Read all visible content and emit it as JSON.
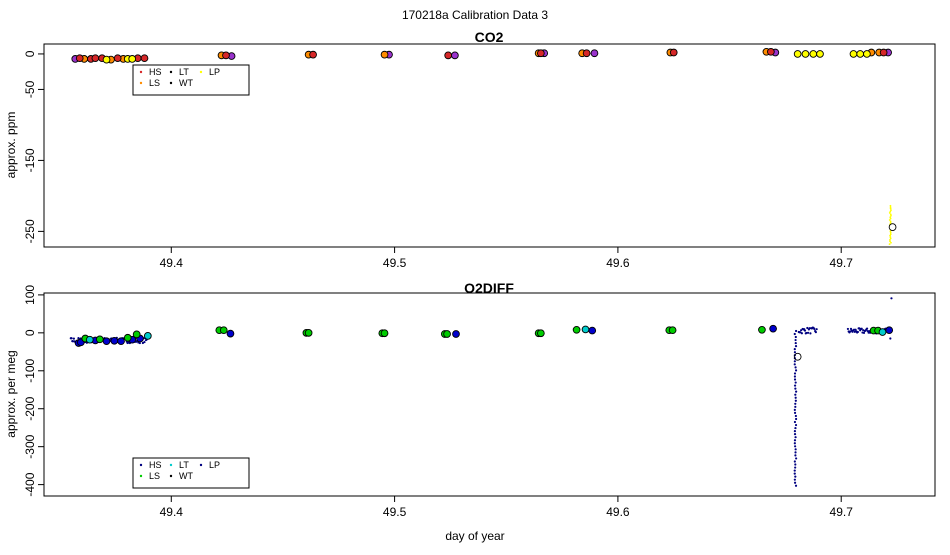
{
  "page_title": "170218a   Calibration Data 3",
  "chart_data": [
    {
      "type": "scatter",
      "title": "CO2",
      "xlabel": "",
      "ylabel": "approx. ppm",
      "xlim": [
        49.343,
        49.742
      ],
      "ylim": [
        -272,
        14
      ],
      "x_ticks": [
        "49.4",
        "49.5",
        "49.6",
        "49.7"
      ],
      "y_ticks": [
        "0",
        "-50",
        "-150",
        "-250"
      ],
      "legend": {
        "placement": "top-left",
        "entries": [
          {
            "label": "HS",
            "color": "#d62728"
          },
          {
            "label": "LS",
            "color": "#ff8c00"
          },
          {
            "label": "LT",
            "color": "#000000"
          },
          {
            "label": "WT",
            "color": "#000000"
          },
          {
            "label": "LP",
            "color": "#ffff00"
          }
        ]
      },
      "series": [
        {
          "color": "#9933cc",
          "points": [
            [
              49.357,
              -7
            ],
            [
              49.427,
              -3
            ],
            [
              49.4975,
              -1
            ],
            [
              49.527,
              -2
            ],
            [
              49.567,
              1
            ],
            [
              49.5895,
              1
            ],
            [
              49.6705,
              2
            ],
            [
              49.721,
              2
            ]
          ]
        },
        {
          "color": "#ff8c00",
          "points": [
            [
              49.361,
              -7
            ],
            [
              49.373,
              -8
            ],
            [
              49.3785,
              -7
            ],
            [
              49.4225,
              -2
            ],
            [
              49.4615,
              -1
            ],
            [
              49.4955,
              -1
            ],
            [
              49.5645,
              1
            ],
            [
              49.584,
              1
            ],
            [
              49.6235,
              2
            ],
            [
              49.6665,
              3
            ],
            [
              49.7135,
              2
            ],
            [
              49.717,
              2
            ]
          ]
        },
        {
          "color": "#d62728",
          "points": [
            [
              49.359,
              -6
            ],
            [
              49.364,
              -7
            ],
            [
              49.366,
              -6
            ],
            [
              49.369,
              -6
            ],
            [
              49.376,
              -6
            ],
            [
              49.385,
              -6
            ],
            [
              49.388,
              -6
            ],
            [
              49.4245,
              -2
            ],
            [
              49.4635,
              -1
            ],
            [
              49.524,
              -2
            ],
            [
              49.5655,
              1
            ],
            [
              49.586,
              1
            ],
            [
              49.625,
              2
            ],
            [
              49.6685,
              3
            ],
            [
              49.719,
              2
            ]
          ]
        },
        {
          "color": "#ffff00",
          "points": [
            [
              49.371,
              -8
            ],
            [
              49.3805,
              -7
            ],
            [
              49.3825,
              -7
            ],
            [
              49.6805,
              0
            ],
            [
              49.684,
              0
            ],
            [
              49.6875,
              0
            ],
            [
              49.6905,
              0
            ],
            [
              49.7055,
              0
            ],
            [
              49.7085,
              0
            ],
            [
              49.7115,
              0
            ],
            [
              49.723,
              -244
            ]
          ]
        }
      ],
      "trace": {
        "color": "#ffff00",
        "x": 49.722,
        "y_range": [
          -268,
          -214
        ]
      }
    },
    {
      "type": "scatter",
      "title": "O2DIFF",
      "xlabel": "day of year",
      "ylabel": "approx. per meg",
      "xlim": [
        49.343,
        49.742
      ],
      "ylim": [
        -430,
        105
      ],
      "x_ticks": [
        "49.4",
        "49.5",
        "49.6",
        "49.7"
      ],
      "y_ticks": [
        "100",
        "0",
        "-100",
        "-200",
        "-300",
        "-400"
      ],
      "legend": {
        "placement": "bottom-left",
        "entries": [
          {
            "label": "HS",
            "color": "#000080"
          },
          {
            "label": "LS",
            "color": "#00cc00"
          },
          {
            "label": "LT",
            "color": "#00cccc"
          },
          {
            "label": "WT",
            "color": "#000000"
          },
          {
            "label": "LP",
            "color": "#000080"
          }
        ]
      },
      "series": [
        {
          "color": "#0000cc",
          "points": [
            [
              49.3585,
              -27
            ],
            [
              49.3595,
              -25
            ],
            [
              49.366,
              -20
            ],
            [
              49.371,
              -22
            ],
            [
              49.3745,
              -21
            ],
            [
              49.3775,
              -22
            ],
            [
              49.3825,
              -18
            ],
            [
              49.386,
              -15
            ],
            [
              49.4265,
              -2
            ],
            [
              49.5275,
              -3
            ],
            [
              49.5885,
              6
            ],
            [
              49.6695,
              11
            ],
            [
              49.7215,
              7
            ]
          ]
        },
        {
          "color": "#00cc00",
          "points": [
            [
              49.3615,
              -15
            ],
            [
              49.368,
              -17
            ],
            [
              49.3805,
              -13
            ],
            [
              49.3845,
              -4
            ],
            [
              49.4215,
              7
            ],
            [
              49.4235,
              7
            ],
            [
              49.4605,
              0
            ],
            [
              49.4615,
              0
            ],
            [
              49.4945,
              -1
            ],
            [
              49.4955,
              -1
            ],
            [
              49.5225,
              -3
            ],
            [
              49.5235,
              -3
            ],
            [
              49.5645,
              -1
            ],
            [
              49.5655,
              -1
            ],
            [
              49.5815,
              8
            ],
            [
              49.623,
              7
            ],
            [
              49.6245,
              7
            ],
            [
              49.6645,
              8
            ],
            [
              49.7145,
              6
            ],
            [
              49.7165,
              6
            ]
          ]
        },
        {
          "color": "#00cccc",
          "points": [
            [
              49.3635,
              -18
            ],
            [
              49.3895,
              -8
            ],
            [
              49.5855,
              9
            ],
            [
              49.7185,
              2
            ]
          ]
        }
      ],
      "trace_segments": [
        {
          "color": "#000080",
          "x_range": [
            49.355,
            49.389
          ],
          "y_mid": -20,
          "spread": 14
        },
        {
          "color": "#000080",
          "x_range": [
            49.681,
            49.689
          ],
          "y_mid": 6,
          "spread": 16
        },
        {
          "color": "#000080",
          "x_range": [
            49.703,
            49.7205
          ],
          "y_mid": 5,
          "spread": 14
        }
      ],
      "dip": {
        "color": "#000080",
        "x": 49.6795,
        "y_top": 5,
        "y_bottom": -408
      },
      "open_marker": {
        "x": 49.6805,
        "y": -63
      },
      "outliers": [
        [
          49.7225,
          91
        ],
        [
          49.722,
          -15
        ]
      ]
    }
  ]
}
